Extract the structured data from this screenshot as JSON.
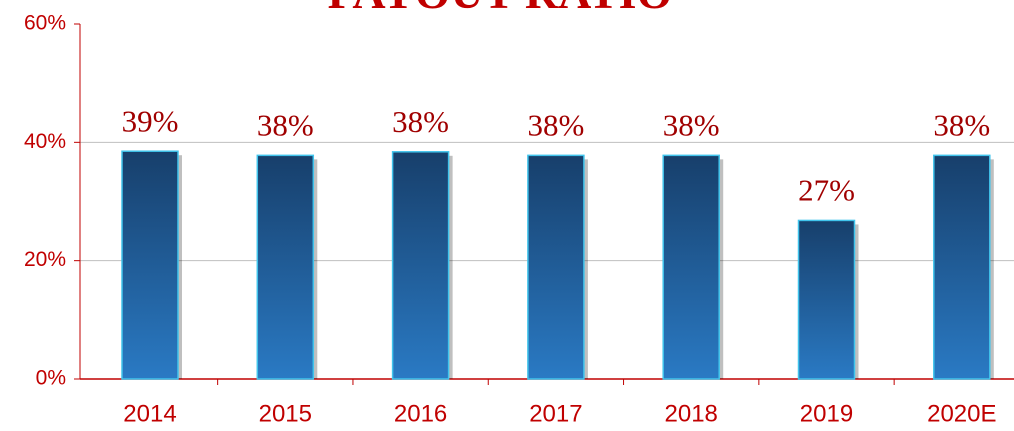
{
  "chart_data": {
    "type": "bar",
    "title": "PAYOUT RATIO",
    "categories": [
      "2014",
      "2015",
      "2016",
      "2017",
      "2018",
      "2019",
      "2020E"
    ],
    "values": [
      38.5,
      37.8,
      38.4,
      37.8,
      37.8,
      26.8,
      37.8
    ],
    "value_labels": [
      "39%",
      "38%",
      "38%",
      "38%",
      "38%",
      "27%",
      "38%"
    ],
    "color": "#1f5d9a",
    "ylim": [
      0,
      60
    ],
    "yticks": [
      {
        "value": 0,
        "label": "0%"
      },
      {
        "value": 20,
        "label": "20%"
      },
      {
        "value": 40,
        "label": "40%"
      },
      {
        "value": 60,
        "label": "60%"
      }
    ],
    "grid": true
  }
}
